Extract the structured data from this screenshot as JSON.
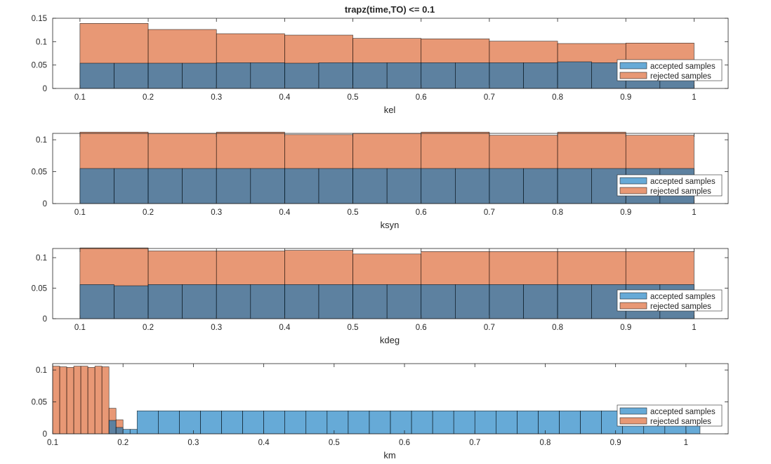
{
  "figure": {
    "title": "trapz(time,TO) <= 0.1",
    "colors": {
      "accepted": "#0072BD",
      "rejected": "#D95319",
      "bar_edge": "#000000"
    }
  },
  "chart_data": [
    {
      "type": "bar",
      "xlabel": "kel",
      "xlim": [
        0.06,
        1.05
      ],
      "ylim": [
        0,
        0.15
      ],
      "xticks": [
        0.1,
        0.2,
        0.3,
        0.4,
        0.5,
        0.6,
        0.7,
        0.8,
        0.9,
        1
      ],
      "yticks": [
        0,
        0.05,
        0.1,
        0.15
      ],
      "legend_position": "right",
      "series": [
        {
          "name": "accepted samples",
          "bin_edges": [
            0.1,
            0.15,
            0.2,
            0.25,
            0.3,
            0.35,
            0.4,
            0.45,
            0.5,
            0.55,
            0.6,
            0.65,
            0.7,
            0.75,
            0.8,
            0.85,
            0.9,
            0.95,
            1.0
          ],
          "values": [
            0.054,
            0.054,
            0.054,
            0.054,
            0.055,
            0.055,
            0.054,
            0.055,
            0.055,
            0.055,
            0.055,
            0.055,
            0.055,
            0.055,
            0.057,
            0.055,
            0.055,
            0.055
          ]
        },
        {
          "name": "rejected samples",
          "bin_edges": [
            0.1,
            0.2,
            0.3,
            0.4,
            0.5,
            0.6,
            0.7,
            0.8,
            0.9,
            1.0
          ],
          "values": [
            0.139,
            0.126,
            0.117,
            0.114,
            0.107,
            0.106,
            0.101,
            0.096,
            0.097
          ]
        }
      ]
    },
    {
      "type": "bar",
      "xlabel": "ksyn",
      "xlim": [
        0.06,
        1.05
      ],
      "ylim": [
        0,
        0.11
      ],
      "xticks": [
        0.1,
        0.2,
        0.3,
        0.4,
        0.5,
        0.6,
        0.7,
        0.8,
        0.9,
        1
      ],
      "yticks": [
        0,
        0.05,
        0.1
      ],
      "legend_position": "right",
      "series": [
        {
          "name": "accepted samples",
          "bin_edges": [
            0.1,
            0.15,
            0.2,
            0.25,
            0.3,
            0.35,
            0.4,
            0.45,
            0.5,
            0.55,
            0.6,
            0.65,
            0.7,
            0.75,
            0.8,
            0.85,
            0.9,
            0.95,
            1.0
          ],
          "values": [
            0.055,
            0.055,
            0.055,
            0.055,
            0.055,
            0.055,
            0.055,
            0.055,
            0.055,
            0.055,
            0.055,
            0.055,
            0.055,
            0.055,
            0.055,
            0.055,
            0.055,
            0.055
          ]
        },
        {
          "name": "rejected samples",
          "bin_edges": [
            0.1,
            0.2,
            0.3,
            0.4,
            0.5,
            0.6,
            0.7,
            0.8,
            0.9,
            1.0
          ],
          "values": [
            0.112,
            0.11,
            0.112,
            0.108,
            0.11,
            0.112,
            0.107,
            0.112,
            0.107
          ]
        }
      ]
    },
    {
      "type": "bar",
      "xlabel": "kdeg",
      "xlim": [
        0.06,
        1.05
      ],
      "ylim": [
        0,
        0.115
      ],
      "xticks": [
        0.1,
        0.2,
        0.3,
        0.4,
        0.5,
        0.6,
        0.7,
        0.8,
        0.9,
        1
      ],
      "yticks": [
        0,
        0.05,
        0.1
      ],
      "legend_position": "right",
      "series": [
        {
          "name": "accepted samples",
          "bin_edges": [
            0.1,
            0.15,
            0.2,
            0.25,
            0.3,
            0.35,
            0.4,
            0.45,
            0.5,
            0.55,
            0.6,
            0.65,
            0.7,
            0.75,
            0.8,
            0.85,
            0.9,
            0.95,
            1.0
          ],
          "values": [
            0.056,
            0.054,
            0.056,
            0.056,
            0.056,
            0.056,
            0.056,
            0.056,
            0.056,
            0.056,
            0.056,
            0.056,
            0.056,
            0.056,
            0.056,
            0.056,
            0.056,
            0.056
          ]
        },
        {
          "name": "rejected samples",
          "bin_edges": [
            0.1,
            0.2,
            0.3,
            0.4,
            0.5,
            0.6,
            0.7,
            0.8,
            0.9,
            1.0
          ],
          "values": [
            0.116,
            0.111,
            0.111,
            0.112,
            0.106,
            0.11,
            0.11,
            0.11,
            0.11
          ]
        }
      ]
    },
    {
      "type": "bar",
      "xlabel": "km",
      "xlim": [
        0.1,
        1.06
      ],
      "ylim": [
        0,
        0.11
      ],
      "xticks": [
        0.1,
        0.2,
        0.3,
        0.4,
        0.5,
        0.6,
        0.7,
        0.8,
        0.9,
        1
      ],
      "yticks": [
        0,
        0.05,
        0.1
      ],
      "legend_position": "right",
      "series": [
        {
          "name": "accepted samples",
          "bin_edges": [
            0.18,
            0.19,
            0.2,
            0.21,
            0.22,
            0.25,
            0.28,
            0.31,
            0.34,
            0.37,
            0.4,
            0.43,
            0.46,
            0.49,
            0.52,
            0.55,
            0.58,
            0.61,
            0.64,
            0.67,
            0.7,
            0.73,
            0.76,
            0.79,
            0.82,
            0.85,
            0.88,
            0.91,
            0.94,
            0.97,
            1.0,
            1.02
          ],
          "values": [
            0.021,
            0.01,
            0.007,
            0.007,
            0.036,
            0.036,
            0.036,
            0.036,
            0.036,
            0.036,
            0.036,
            0.036,
            0.036,
            0.036,
            0.036,
            0.036,
            0.036,
            0.036,
            0.036,
            0.036,
            0.036,
            0.036,
            0.036,
            0.036,
            0.036,
            0.036,
            0.036,
            0.036,
            0.036,
            0.036,
            0.015
          ]
        },
        {
          "name": "rejected samples",
          "bin_edges": [
            0.1,
            0.11,
            0.12,
            0.13,
            0.14,
            0.15,
            0.16,
            0.17,
            0.18,
            0.19,
            0.2
          ],
          "values": [
            0.106,
            0.105,
            0.104,
            0.106,
            0.106,
            0.104,
            0.106,
            0.105,
            0.04,
            0.022
          ]
        }
      ]
    }
  ]
}
